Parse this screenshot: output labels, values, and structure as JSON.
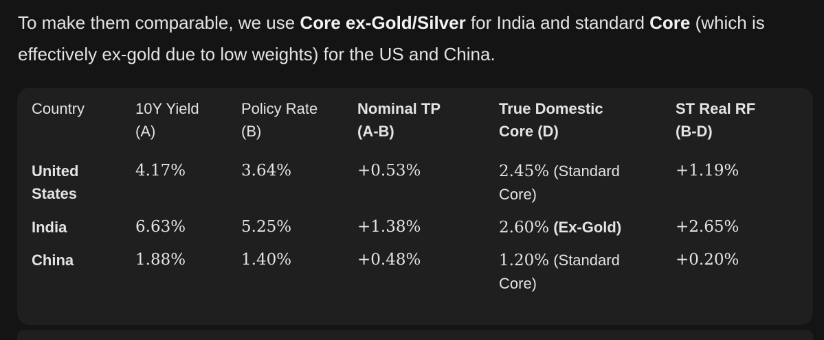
{
  "intro": {
    "part1": "To make them comparable, we use ",
    "bold1": "Core ex-Gold/Silver",
    "part2": " for India and standard ",
    "bold2": "Core",
    "part3": " (which is effectively ex-gold due to low weights) for the US and China."
  },
  "table": {
    "headers": [
      {
        "line1": "Country",
        "line2": ""
      },
      {
        "line1": "10Y Yield",
        "line2": "(A)"
      },
      {
        "line1": "Policy Rate",
        "line2": "(B)"
      },
      {
        "line1": "Nominal TP",
        "line2": "(A-B)"
      },
      {
        "line1": "True Domestic",
        "line2": "Core (D)"
      },
      {
        "line1": "ST Real RF",
        "line2": "(B-D)"
      }
    ],
    "rows": [
      {
        "country_line1": "United",
        "country_line2": "States",
        "yield": "4.17%",
        "policy": "3.64%",
        "tp": "+0.53%",
        "core_value": "2.45%",
        "core_note": " (Standard",
        "core_note2": "Core)",
        "real_rf": "+1.19%"
      },
      {
        "country_line1": "India",
        "country_line2": "",
        "yield": "6.63%",
        "policy": "5.25%",
        "tp": "+1.38%",
        "core_value": "2.60%",
        "core_note": " (Ex-Gold)",
        "core_note2": "",
        "real_rf": "+2.65%"
      },
      {
        "country_line1": "China",
        "country_line2": "",
        "yield": "1.88%",
        "policy": "1.40%",
        "tp": "+0.48%",
        "core_value": "1.20%",
        "core_note": " (Standard",
        "core_note2": "Core)",
        "real_rf": "+0.20%"
      }
    ]
  }
}
